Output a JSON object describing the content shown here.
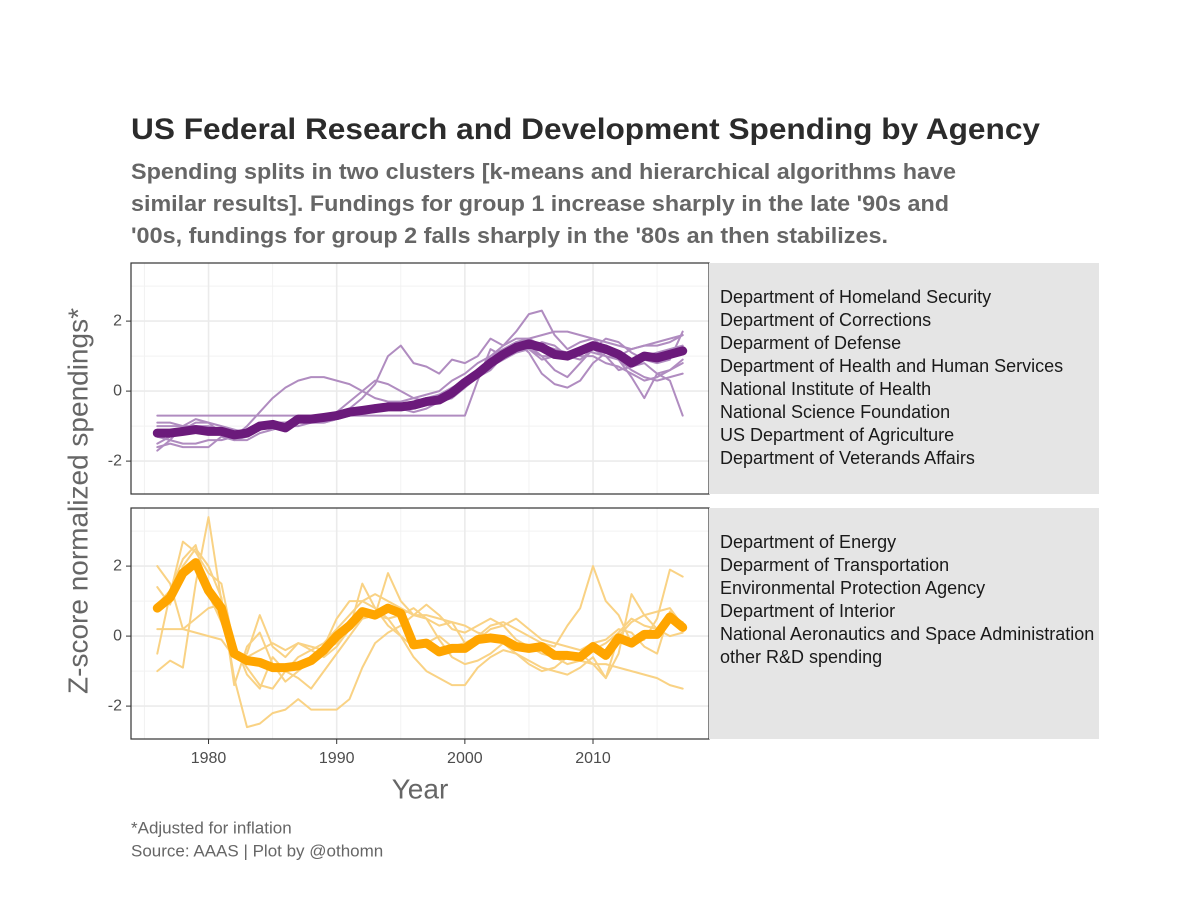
{
  "chart_data": {
    "type": "line",
    "title": "US Federal Research and Development Spending by Agency",
    "subtitle": [
      "Spending splits in two clusters [k-means and hierarchical algorithms have",
      "similar results]. Fundings for group 1 increase sharply in the late '90s and",
      "'00s, fundings for group 2 falls sharply in the '80s an then stabilizes."
    ],
    "xlabel": "Year",
    "ylabel": "Z-score normalized spendings*",
    "caption": [
      "*Adjusted for inflation",
      "Source: AAAS | Plot by @othomn"
    ],
    "x": [
      1976,
      1977,
      1978,
      1979,
      1980,
      1981,
      1982,
      1983,
      1984,
      1985,
      1986,
      1987,
      1988,
      1989,
      1990,
      1991,
      1992,
      1993,
      1994,
      1995,
      1996,
      1997,
      1998,
      1999,
      2000,
      2001,
      2002,
      2003,
      2004,
      2005,
      2006,
      2007,
      2008,
      2009,
      2010,
      2011,
      2012,
      2013,
      2014,
      2015,
      2016,
      2017
    ],
    "xlim": [
      1973.95,
      2019.05
    ],
    "xticks": [
      1980,
      1990,
      2000,
      2010
    ],
    "ylim": [
      -2.94,
      3.66
    ],
    "yticks": [
      -2,
      0,
      2
    ],
    "grid": true,
    "panels": [
      {
        "mean": {
          "color": "#6b1a7b",
          "values": [
            -1.2,
            -1.2,
            -1.15,
            -1.1,
            -1.15,
            -1.15,
            -1.25,
            -1.2,
            -1.0,
            -0.95,
            -1.05,
            -0.8,
            -0.8,
            -0.75,
            -0.7,
            -0.6,
            -0.55,
            -0.5,
            -0.45,
            -0.45,
            -0.4,
            -0.3,
            -0.25,
            -0.05,
            0.25,
            0.5,
            0.8,
            1.05,
            1.25,
            1.35,
            1.25,
            1.05,
            1.0,
            1.15,
            1.3,
            1.2,
            1.05,
            0.8,
            1.0,
            0.95,
            1.05,
            1.15
          ]
        },
        "series": [
          {
            "name": "Department of Homeland Security",
            "color": "#b08cc0",
            "values": [
              -0.7,
              -0.7,
              -0.7,
              -0.7,
              -0.7,
              -0.7,
              -0.7,
              -0.7,
              -0.7,
              -0.7,
              -0.7,
              -0.7,
              -0.7,
              -0.7,
              -0.7,
              -0.7,
              -0.7,
              -0.7,
              -0.7,
              -0.7,
              -0.7,
              -0.7,
              -0.7,
              -0.7,
              -0.7,
              0.3,
              1.2,
              1.0,
              1.3,
              1.2,
              0.9,
              1.0,
              1.1,
              1.2,
              1.3,
              1.1,
              1.0,
              1.2,
              1.3,
              1.3,
              1.4,
              1.6
            ]
          },
          {
            "name": "Department of Corrections",
            "color": "#b08cc0",
            "values": [
              -1.5,
              -1.3,
              -1.1,
              -1.0,
              -1.0,
              -1.1,
              -1.3,
              -1.0,
              -0.6,
              -0.2,
              0.1,
              0.3,
              0.4,
              0.4,
              0.3,
              0.2,
              0.0,
              -0.2,
              -0.3,
              -0.3,
              -0.2,
              -0.1,
              0.0,
              0.3,
              0.5,
              0.8,
              1.0,
              1.2,
              1.3,
              1.2,
              1.0,
              1.0,
              1.1,
              1.2,
              1.1,
              1.0,
              0.9,
              0.8,
              1.0,
              1.1,
              1.2,
              1.3
            ]
          },
          {
            "name": "Deparment of Defense",
            "color": "#b08cc0",
            "values": [
              -1.6,
              -1.5,
              -1.6,
              -1.6,
              -1.6,
              -1.3,
              -1.4,
              -1.4,
              -1.2,
              -1.1,
              -1.0,
              -1.0,
              -0.9,
              -0.9,
              -0.8,
              -0.5,
              -0.2,
              0.2,
              1.0,
              1.3,
              0.8,
              0.7,
              0.5,
              0.9,
              0.8,
              1.0,
              1.5,
              1.3,
              1.7,
              2.2,
              2.3,
              1.6,
              1.2,
              1.4,
              1.5,
              1.2,
              0.9,
              0.4,
              -0.2,
              0.5,
              0.6,
              0.9
            ]
          },
          {
            "name": "Department of Health and Human Services",
            "color": "#b08cc0",
            "values": [
              -1.7,
              -1.4,
              -1.0,
              -0.8,
              -0.9,
              -1.2,
              -1.4,
              -1.3,
              -1.1,
              -1.0,
              -0.9,
              -0.9,
              -0.9,
              -0.9,
              -0.8,
              -0.7,
              -0.6,
              -0.5,
              -0.5,
              -0.5,
              -0.6,
              -0.5,
              -0.3,
              -0.2,
              0.2,
              0.5,
              1.0,
              1.3,
              1.5,
              1.5,
              1.3,
              1.2,
              1.1,
              1.0,
              1.0,
              0.8,
              0.7,
              0.5,
              0.3,
              0.4,
              0.6,
              0.8
            ]
          },
          {
            "name": "National Institute of Health",
            "color": "#b08cc0",
            "values": [
              -0.9,
              -0.9,
              -1.0,
              -1.0,
              -1.1,
              -1.1,
              -1.2,
              -1.2,
              -1.0,
              -1.0,
              -1.0,
              -0.9,
              -0.8,
              -0.7,
              -0.7,
              -0.6,
              -0.5,
              -0.4,
              -0.4,
              -0.4,
              -0.3,
              -0.2,
              -0.2,
              0.0,
              0.2,
              0.4,
              0.6,
              1.0,
              1.4,
              1.5,
              1.6,
              1.7,
              1.7,
              1.6,
              1.5,
              1.4,
              1.3,
              1.2,
              1.3,
              1.4,
              1.5,
              1.6
            ]
          },
          {
            "name": "National Science Foundation",
            "color": "#b08cc0",
            "values": [
              -1.0,
              -1.0,
              -1.0,
              -1.1,
              -1.1,
              -1.2,
              -1.3,
              -1.2,
              -1.0,
              -0.9,
              -0.9,
              -0.8,
              -0.8,
              -0.7,
              -0.6,
              -0.3,
              0.0,
              0.3,
              0.2,
              0.0,
              -0.2,
              -0.3,
              -0.2,
              -0.1,
              0.2,
              0.5,
              0.7,
              0.9,
              1.1,
              1.2,
              1.4,
              1.3,
              1.0,
              0.9,
              1.2,
              1.5,
              1.4,
              1.1,
              0.9,
              0.8,
              0.9,
              1.7
            ]
          },
          {
            "name": "US Department of Agriculture",
            "color": "#b08cc0",
            "values": [
              -1.2,
              -1.2,
              -1.1,
              -0.9,
              -0.9,
              -1.0,
              -1.1,
              -1.2,
              -1.1,
              -1.0,
              -1.0,
              -0.9,
              -0.8,
              -0.8,
              -0.7,
              -0.7,
              -0.6,
              -0.6,
              -0.5,
              -0.5,
              -0.5,
              -0.4,
              -0.3,
              -0.2,
              0.1,
              0.4,
              0.8,
              1.0,
              1.2,
              1.3,
              1.0,
              0.6,
              0.4,
              0.8,
              1.2,
              1.0,
              0.6,
              0.7,
              0.8,
              0.5,
              0.3,
              -0.7
            ]
          },
          {
            "name": "Department of Veterands Affairs",
            "color": "#b08cc0",
            "values": [
              -1.3,
              -1.4,
              -1.5,
              -1.5,
              -1.4,
              -1.4,
              -1.3,
              -1.2,
              -1.0,
              -0.9,
              -0.9,
              -0.9,
              -0.8,
              -0.8,
              -0.7,
              -0.6,
              -0.6,
              -0.5,
              -0.4,
              -0.4,
              -0.3,
              -0.2,
              -0.1,
              0.1,
              0.3,
              0.6,
              0.9,
              1.2,
              1.4,
              1.1,
              0.5,
              0.2,
              0.1,
              0.3,
              0.8,
              1.1,
              0.9,
              0.6,
              0.4,
              0.3,
              0.4,
              0.5
            ]
          }
        ]
      },
      {
        "mean": {
          "color": "#ffa500",
          "values": [
            0.8,
            1.1,
            1.8,
            2.1,
            1.3,
            0.8,
            -0.5,
            -0.7,
            -0.75,
            -0.9,
            -0.9,
            -0.85,
            -0.7,
            -0.4,
            0.0,
            0.3,
            0.7,
            0.6,
            0.8,
            0.65,
            -0.25,
            -0.2,
            -0.45,
            -0.35,
            -0.35,
            -0.1,
            -0.05,
            -0.1,
            -0.3,
            -0.35,
            -0.3,
            -0.55,
            -0.55,
            -0.6,
            -0.3,
            -0.55,
            -0.05,
            -0.2,
            0.05,
            0.05,
            0.55,
            0.25
          ]
        },
        "series": [
          {
            "name": "Department of Energy",
            "color": "#f9d284",
            "values": [
              2.0,
              1.5,
              0.2,
              0.1,
              0.0,
              -0.1,
              -0.6,
              -0.5,
              0.6,
              -0.3,
              -0.6,
              -0.2,
              -0.4,
              -0.6,
              -0.3,
              0.2,
              1.5,
              0.8,
              0.3,
              0.0,
              -0.3,
              -0.2,
              0.0,
              -0.3,
              -0.2,
              0.0,
              0.3,
              0.4,
              0.2,
              0.0,
              -0.2,
              -0.3,
              0.3,
              0.8,
              2.0,
              1.0,
              0.6,
              -0.2,
              -0.1,
              0.5,
              1.9,
              1.7
            ]
          },
          {
            "name": "Deparment of Transportation",
            "color": "#f9d284",
            "values": [
              -0.5,
              1.2,
              2.7,
              2.4,
              1.8,
              1.5,
              -0.3,
              -0.9,
              -1.4,
              -1.5,
              -1.0,
              -0.6,
              -0.4,
              -0.2,
              0.2,
              0.6,
              1.0,
              1.2,
              1.0,
              0.8,
              0.6,
              0.6,
              0.5,
              0.4,
              0.3,
              0.1,
              0.0,
              -0.1,
              -0.2,
              -0.3,
              -0.4,
              -0.5,
              -0.6,
              -0.7,
              -0.8,
              -0.8,
              -0.9,
              -1.0,
              -1.1,
              -1.2,
              -1.4,
              -1.5
            ]
          },
          {
            "name": "Environmental Protection Agency",
            "color": "#f9d284",
            "values": [
              -1.0,
              -0.7,
              -0.9,
              1.5,
              3.4,
              1.0,
              -1.2,
              -2.6,
              -2.5,
              -2.2,
              -2.1,
              -1.8,
              -2.1,
              -2.1,
              -2.1,
              -1.8,
              -0.9,
              -0.2,
              0.1,
              0.3,
              0.6,
              0.9,
              0.6,
              0.2,
              0.1,
              0.3,
              0.5,
              0.3,
              -0.1,
              -0.3,
              -0.5,
              -0.6,
              -0.8,
              -0.7,
              -0.4,
              -0.2,
              0.1,
              0.5,
              0.3,
              0.2,
              0.5,
              0.4
            ]
          },
          {
            "name": "Department of Interior",
            "color": "#f9d284",
            "values": [
              1.4,
              0.9,
              2.0,
              2.5,
              2.0,
              1.1,
              -1.4,
              -0.3,
              0.1,
              -0.8,
              -1.3,
              -1.0,
              -0.7,
              -0.3,
              0.5,
              1.0,
              1.0,
              0.8,
              0.5,
              0.0,
              -0.6,
              -1.0,
              -1.2,
              -1.4,
              -1.4,
              -0.9,
              -0.6,
              -0.4,
              -0.5,
              -0.7,
              -0.9,
              -1.0,
              -1.1,
              -0.9,
              -0.6,
              -1.2,
              0.0,
              0.4,
              0.6,
              0.7,
              0.8,
              0.3
            ]
          },
          {
            "name": "National Aeronautics and Space Administration",
            "color": "#f9d284",
            "values": [
              0.2,
              0.2,
              0.2,
              0.5,
              0.8,
              0.9,
              -0.2,
              -1.1,
              -1.5,
              -0.6,
              -1.0,
              -1.2,
              -1.5,
              -1.0,
              -0.5,
              0.0,
              0.5,
              0.6,
              1.8,
              1.0,
              0.6,
              0.5,
              -0.1,
              -0.6,
              -0.8,
              -0.7,
              -0.5,
              -0.2,
              -0.5,
              -0.8,
              -1.0,
              -0.9,
              -0.6,
              -0.5,
              -0.8,
              -1.2,
              -0.5,
              1.2,
              0.6,
              0.2,
              0.0,
              0.1
            ]
          },
          {
            "name": "other R&D spending",
            "color": "#f9d284",
            "values": [
              0.9,
              1.3,
              2.2,
              2.6,
              1.2,
              0.4,
              -0.6,
              -0.6,
              -0.4,
              -0.2,
              -0.4,
              -0.2,
              -0.3,
              -0.4,
              -0.2,
              0.3,
              0.5,
              0.6,
              0.5,
              0.6,
              0.8,
              0.5,
              0.3,
              0.4,
              -0.2,
              -0.1,
              0.2,
              0.3,
              0.5,
              0.2,
              -0.1,
              -0.2,
              -0.3,
              -0.4,
              -0.2,
              -0.1,
              0.2,
              0.1,
              -0.3,
              -0.5,
              0.7,
              0.2
            ]
          }
        ]
      }
    ]
  }
}
